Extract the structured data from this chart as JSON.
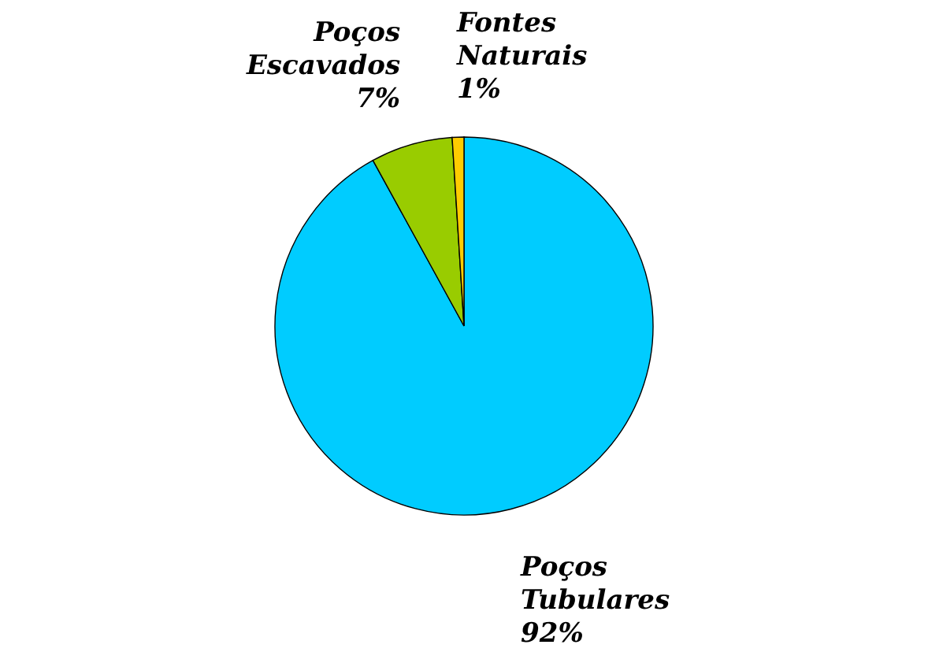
{
  "chart_data": {
    "type": "pie",
    "categories": [
      "Poços Tubulares",
      "Poços Escavados",
      "Fontes Naturais"
    ],
    "values": [
      92,
      7,
      1
    ],
    "colors": [
      "#00ccff",
      "#99cc00",
      "#ffcc00"
    ],
    "value_labels": [
      "92%",
      "7%",
      "1%"
    ]
  }
}
